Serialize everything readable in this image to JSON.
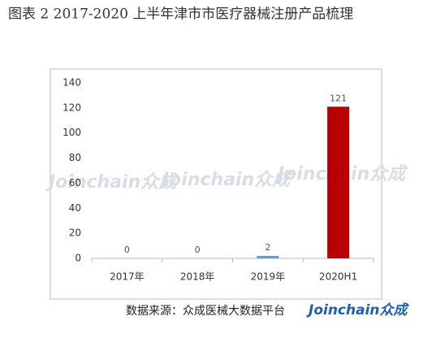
{
  "chart_data": {
    "type": "bar",
    "title": "图表 2   2017-2020 上半年津市市医疗器械注册产品梳理",
    "categories": [
      "2017年",
      "2018年",
      "2019年",
      "2020H1"
    ],
    "values": [
      0,
      0,
      2,
      121
    ],
    "colors": [
      "#5ba3cf",
      "#5ba3cf",
      "#5ba3cf",
      "#b80000"
    ],
    "ylim": [
      0,
      140
    ],
    "yticks": [
      0,
      20,
      40,
      60,
      80,
      100,
      120,
      140
    ],
    "source": "数据来源：众成医械大数据平台",
    "logo": "Joinchain众成",
    "watermark": "Joinchain众成"
  }
}
